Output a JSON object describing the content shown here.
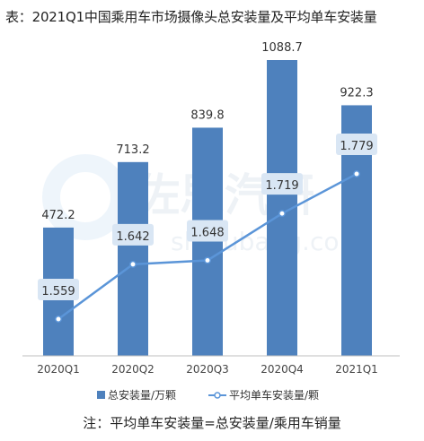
{
  "title": "表：2021Q1中国乘用车市场摄像头总安装量及平均单车安装量",
  "note": "注：平均单车安装量=总安装量/乘用车销量",
  "watermark": {
    "brand": "佐思汽研",
    "url": "shujubang.com"
  },
  "colors": {
    "bar": "#4e81bd",
    "line": "#5b95d8",
    "label_box": "#d9e6f4",
    "axis": "#bfbfbf"
  },
  "chart_data": {
    "type": "bar",
    "categories": [
      "2020Q1",
      "2020Q2",
      "2020Q3",
      "2020Q4",
      "2021Q1"
    ],
    "series": [
      {
        "name": "总安装量/万颗",
        "type": "bar",
        "values": [
          472.2,
          713.2,
          839.8,
          1088.7,
          922.3
        ]
      },
      {
        "name": "平均单车安装量/颗",
        "type": "line",
        "values": [
          1.559,
          1.642,
          1.648,
          1.719,
          1.779
        ]
      }
    ],
    "bar_labels": [
      "472.2",
      "713.2",
      "839.8",
      "1088.7",
      "922.3"
    ],
    "line_labels": [
      "1.559",
      "1.642",
      "1.648",
      "1.719",
      "1.779"
    ],
    "grid": false,
    "legend_position": "bottom"
  }
}
